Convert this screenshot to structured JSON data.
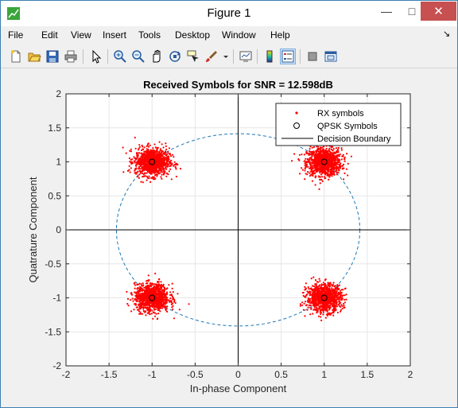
{
  "window": {
    "title": "Figure 1",
    "minimize_glyph": "—",
    "maximize_glyph": "□",
    "close_glyph": "✕",
    "app_icon": "matlab-figure-icon"
  },
  "menu": {
    "items": [
      "File",
      "Edit",
      "View",
      "Insert",
      "Tools",
      "Desktop",
      "Window",
      "Help"
    ],
    "dock_arrow": "↘"
  },
  "toolbar": {
    "buttons": [
      {
        "name": "new-figure-icon"
      },
      {
        "name": "open-file-icon"
      },
      {
        "name": "save-figure-icon"
      },
      {
        "name": "print-figure-icon"
      },
      {
        "name": "edit-plot-icon"
      },
      {
        "name": "zoom-in-icon"
      },
      {
        "name": "zoom-out-icon"
      },
      {
        "name": "pan-icon"
      },
      {
        "name": "rotate-3d-icon"
      },
      {
        "name": "data-cursor-icon"
      },
      {
        "name": "brush-icon"
      },
      {
        "name": "link-plot-icon"
      },
      {
        "name": "insert-colorbar-icon"
      },
      {
        "name": "insert-legend-icon"
      },
      {
        "name": "hide-plot-tools-icon"
      },
      {
        "name": "show-plot-tools-icon"
      }
    ],
    "active": "insert-legend-icon"
  },
  "colors": {
    "rx": "#ff0000",
    "boundary": "#1f77b4",
    "axis_bg": "#ffffff",
    "figure_bg": "#f0f0f0",
    "close_button": "#c75050"
  },
  "chart_data": {
    "type": "scatter",
    "title": "Received Symbols for SNR = 12.598dB",
    "xlabel": "In-phase Component",
    "ylabel": "Quatrature Component",
    "xlim": [
      -2,
      2
    ],
    "ylim": [
      -2,
      2
    ],
    "xticks": [
      -2,
      -1.5,
      -1,
      -0.5,
      0,
      0.5,
      1,
      1.5,
      2
    ],
    "yticks": [
      -2,
      -1.5,
      -1,
      -0.5,
      0,
      0.5,
      1,
      1.5,
      2
    ],
    "xtick_labels": [
      "-2",
      "-1.5",
      "-1",
      "-0.5",
      "0",
      "0.5",
      "1",
      "1.5",
      "2"
    ],
    "ytick_labels": [
      "-2",
      "-1.5",
      "-1",
      "-0.5",
      "0",
      "0.5",
      "1",
      "1.5",
      "2"
    ],
    "grid": true,
    "legend_position": "top-right",
    "legend": [
      "RX symbols",
      "QPSK Symbols",
      "Decision Boundary"
    ],
    "qpsk_symbols": [
      {
        "x": 1,
        "y": 1
      },
      {
        "x": -1,
        "y": 1
      },
      {
        "x": -1,
        "y": -1
      },
      {
        "x": 1,
        "y": -1
      }
    ],
    "rx_spread_std": 0.1,
    "circle_radius": 1.414,
    "decision_boundary": {
      "x": 0,
      "y": 0
    }
  }
}
